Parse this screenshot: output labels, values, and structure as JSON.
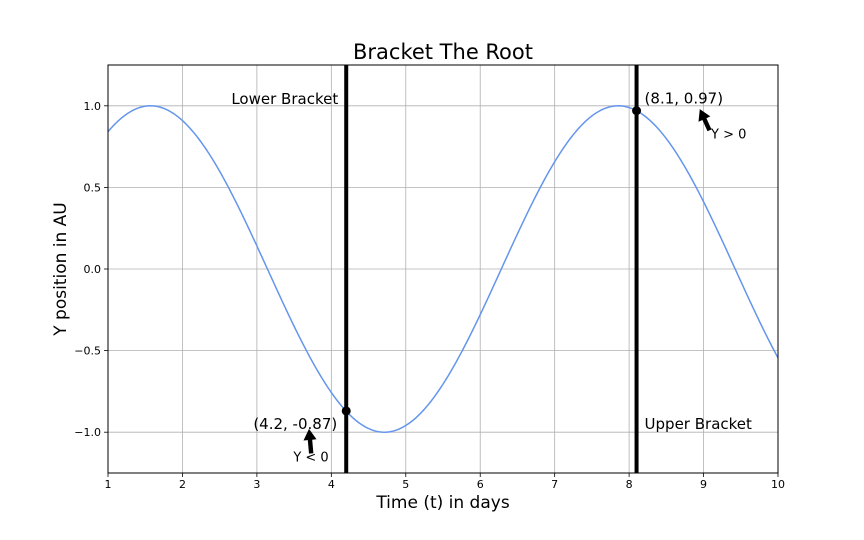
{
  "chart_data": {
    "type": "line",
    "title": "Bracket The Root",
    "xlabel": "Time (t) in days",
    "ylabel": "Y position in AU",
    "xlim": [
      1,
      10
    ],
    "ylim": [
      -1.25,
      1.25
    ],
    "x_ticks": [
      1,
      2,
      3,
      4,
      5,
      6,
      7,
      8,
      9,
      10
    ],
    "y_ticks": [
      -1.0,
      -0.5,
      0.0,
      0.5,
      1.0
    ],
    "y_tick_labels": [
      "−1.0",
      "−0.5",
      "0.0",
      "0.5",
      "1.0"
    ],
    "grid": true,
    "series": [
      {
        "function": "sin(t)",
        "color": "#6495ED",
        "x": [
          1.0,
          1.25,
          1.5,
          1.75,
          2.0,
          2.25,
          2.5,
          2.75,
          3.0,
          3.25,
          3.5,
          3.75,
          4.0,
          4.25,
          4.5,
          4.75,
          5.0,
          5.25,
          5.5,
          5.75,
          6.0,
          6.25,
          6.5,
          6.75,
          7.0,
          7.25,
          7.5,
          7.75,
          8.0,
          8.25,
          8.5,
          8.75,
          9.0,
          9.25,
          9.5,
          9.75,
          10.0
        ],
        "y": [
          0.841,
          0.949,
          0.997,
          0.984,
          0.909,
          0.778,
          0.598,
          0.382,
          0.141,
          -0.108,
          -0.351,
          -0.572,
          -0.757,
          -0.895,
          -0.978,
          -0.999,
          -0.959,
          -0.859,
          -0.706,
          -0.508,
          -0.279,
          -0.033,
          0.215,
          0.45,
          0.657,
          0.823,
          0.938,
          0.995,
          0.989,
          0.922,
          0.798,
          0.624,
          0.412,
          0.174,
          -0.075,
          -0.319,
          -0.544
        ]
      }
    ],
    "vertical_lines": [
      {
        "x": 4.2,
        "label": "Lower Bracket",
        "color": "#000000"
      },
      {
        "x": 8.1,
        "label": "Upper Bracket",
        "color": "#000000"
      }
    ],
    "points": [
      {
        "x": 4.2,
        "y": -0.87,
        "label": "(4.2, -0.87)"
      },
      {
        "x": 8.1,
        "y": 0.97,
        "label": "(8.1, 0.97)"
      }
    ],
    "annotations": [
      {
        "text": "Y < 0",
        "xy": [
          3.7,
          -0.98
        ]
      },
      {
        "text": "Y > 0",
        "xy": [
          8.95,
          0.98
        ]
      }
    ]
  }
}
